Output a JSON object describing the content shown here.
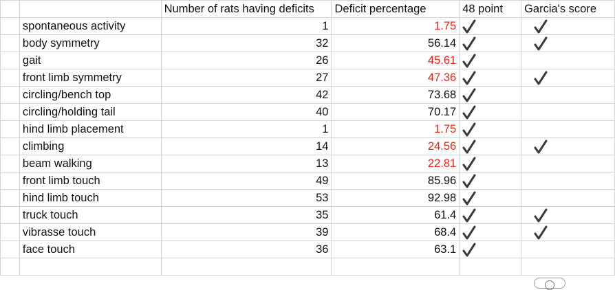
{
  "headers": {
    "rowlabel": "",
    "rats": "Number of rats having deficits",
    "percent": "Deficit percentage",
    "point48": "48 point",
    "garcia": "Garcia's score"
  },
  "rows": [
    {
      "label": "spontaneous activity",
      "rats": "1",
      "percent": "1.75",
      "red": true,
      "point48": true,
      "garcia": true
    },
    {
      "label": "body symmetry",
      "rats": "32",
      "percent": "56.14",
      "red": false,
      "point48": true,
      "garcia": true
    },
    {
      "label": "gait",
      "rats": "26",
      "percent": "45.61",
      "red": true,
      "point48": true,
      "garcia": false
    },
    {
      "label": "front limb symmetry",
      "rats": "27",
      "percent": "47.36",
      "red": true,
      "point48": true,
      "garcia": true
    },
    {
      "label": "circling/bench top",
      "rats": "42",
      "percent": "73.68",
      "red": false,
      "point48": true,
      "garcia": false
    },
    {
      "label": "circling/holding tail",
      "rats": "40",
      "percent": "70.17",
      "red": false,
      "point48": true,
      "garcia": false
    },
    {
      "label": "hind limb placement",
      "rats": "1",
      "percent": "1.75",
      "red": true,
      "point48": true,
      "garcia": false
    },
    {
      "label": "climbing",
      "rats": "14",
      "percent": "24.56",
      "red": true,
      "point48": true,
      "garcia": true
    },
    {
      "label": "beam walking",
      "rats": "13",
      "percent": "22.81",
      "red": true,
      "point48": true,
      "garcia": false
    },
    {
      "label": "front limb touch",
      "rats": "49",
      "percent": "85.96",
      "red": false,
      "point48": true,
      "garcia": false
    },
    {
      "label": "hind limb touch",
      "rats": "53",
      "percent": "92.98",
      "red": false,
      "point48": true,
      "garcia": false
    },
    {
      "label": "truck touch",
      "rats": "35",
      "percent": "61.4",
      "red": false,
      "point48": true,
      "garcia": true
    },
    {
      "label": "vibrasse touch",
      "rats": "39",
      "percent": "68.4",
      "red": false,
      "point48": true,
      "garcia": true
    },
    {
      "label": "face touch",
      "rats": "36",
      "percent": "63.1",
      "red": false,
      "point48": true,
      "garcia": false
    }
  ],
  "colors": {
    "highlight_red": "#e1251b",
    "gridline": "#d4d4d4",
    "checkmark": "#3a3a3a"
  },
  "icons": {
    "check": "checkmark-icon",
    "zoom_widget": "search-icon"
  }
}
